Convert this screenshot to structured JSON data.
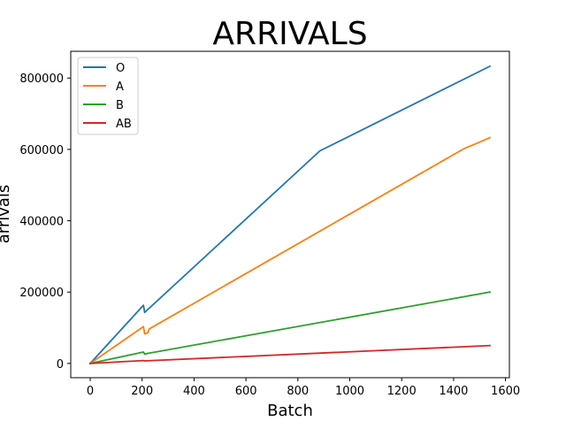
{
  "chart_data": {
    "type": "line",
    "title": "ARRIVALS",
    "xlabel": "Batch",
    "ylabel": "arrivals",
    "xlim": [
      -75,
      1615
    ],
    "ylim": [
      -40000,
      875000
    ],
    "x_ticks": [
      0,
      200,
      400,
      600,
      800,
      1000,
      1200,
      1400,
      1600
    ],
    "y_ticks": [
      0,
      200000,
      400000,
      600000,
      800000
    ],
    "grid": false,
    "legend_position": "top-left",
    "series": [
      {
        "name": "O",
        "color": "#1f77b4",
        "points": [
          [
            0,
            0
          ],
          [
            205,
            163000
          ],
          [
            210,
            143000
          ],
          [
            220,
            150000
          ],
          [
            885,
            596000
          ],
          [
            1540,
            833000
          ]
        ]
      },
      {
        "name": "A",
        "color": "#ff7f0e",
        "points": [
          [
            0,
            0
          ],
          [
            205,
            103000
          ],
          [
            210,
            83000
          ],
          [
            222,
            86000
          ],
          [
            228,
            97000
          ],
          [
            1440,
            602000
          ],
          [
            1500,
            620000
          ],
          [
            1540,
            633000
          ]
        ]
      },
      {
        "name": "B",
        "color": "#2ca02c",
        "points": [
          [
            0,
            0
          ],
          [
            205,
            32000
          ],
          [
            210,
            26000
          ],
          [
            220,
            28000
          ],
          [
            1540,
            200000
          ]
        ]
      },
      {
        "name": "AB",
        "color": "#d62728",
        "points": [
          [
            0,
            0
          ],
          [
            205,
            8000
          ],
          [
            210,
            7000
          ],
          [
            1540,
            50000
          ]
        ]
      }
    ]
  }
}
